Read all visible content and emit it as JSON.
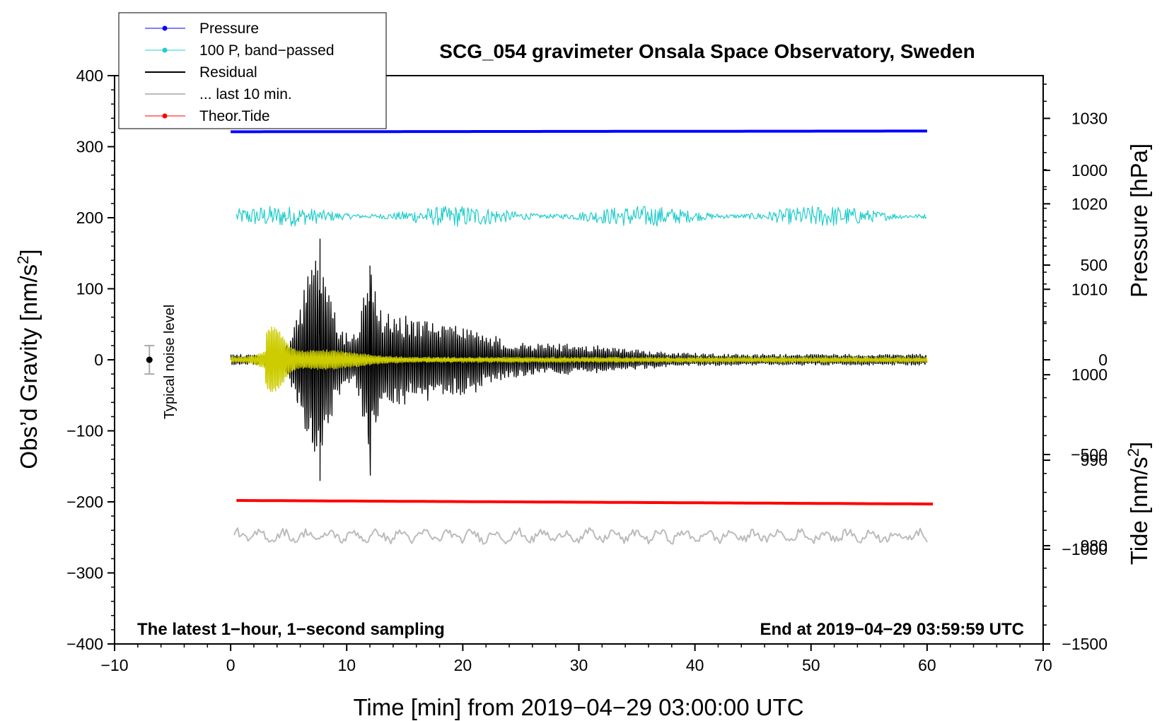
{
  "chart_data": {
    "type": "line",
    "title": "SCG_054 gravimeter Onsala Space Observatory, Sweden",
    "xlabel": "Time [min] from 2019−04−29 03:00:00 UTC",
    "ylabel_left_main": "Obs’d Gravity [nm/s",
    "ylabel_left_sup": "2",
    "ylabel_left_end": "]",
    "ylabel_right_pressure": "Pressure [hPa]",
    "ylabel_right_tide_main": "Tide [nm/s",
    "ylabel_right_tide_sup": "2",
    "ylabel_right_tide_end": "]",
    "xlim": [
      -10,
      70
    ],
    "ylim_left": [
      -400,
      400
    ],
    "ylim_right_pressure": [
      968.5,
      1035
    ],
    "ylim_right_tide": [
      -1500,
      1500
    ],
    "grid": false,
    "legend_position": "top-left",
    "x_ticks": [
      "−10",
      "0",
      "10",
      "20",
      "30",
      "40",
      "50",
      "60",
      "70"
    ],
    "y_ticks_left": [
      "400",
      "300",
      "200",
      "100",
      "0",
      "−100",
      "−200",
      "−300",
      "−400"
    ],
    "y_ticks_right_pressure": [
      "1030",
      "1020",
      "1010",
      "1000",
      "990",
      "980"
    ],
    "y_ticks_right_tide": [
      "1000",
      "500",
      "0",
      "−500",
      "−1000",
      "−1500"
    ],
    "note_left": "The latest 1−hour, 1−second sampling",
    "note_right": "End at 2019−04−29 03:59:59 UTC",
    "noise_label": "Typical noise level",
    "noise_indicator": {
      "x": -7,
      "y": 0,
      "half_range": 20
    },
    "series": [
      {
        "name": "Pressure",
        "color": "#0000ff",
        "style": "line-with-dots",
        "x_range": [
          0,
          60
        ],
        "y_start": 321,
        "y_end": 322,
        "description_axis": "left-plot offset"
      },
      {
        "name": "100 P, band−passed",
        "color": "#22cccc",
        "style": "line-with-dots",
        "x_range": [
          0,
          60
        ],
        "y_center": 202,
        "amplitude": 15
      },
      {
        "name": "Residual",
        "color": "#000000",
        "style": "line",
        "x_range": [
          0,
          60
        ],
        "y_center": 0,
        "peaks": [
          {
            "x": 7.7,
            "y": 170
          },
          {
            "x": 7.7,
            "y": -170
          },
          {
            "x": 12.0,
            "y": 132
          },
          {
            "x": 12.0,
            "y": -122
          }
        ]
      },
      {
        "name": "... last 10 min.",
        "color": "#bbbbbb",
        "style": "line",
        "x_range": [
          0,
          60
        ],
        "y_center": -248,
        "amplitude": 10
      },
      {
        "name": "Theor.Tide",
        "color": "#ff0000",
        "style": "line-with-dots",
        "x_range": [
          0.5,
          60.5
        ],
        "y_start": -198,
        "y_end": -203
      },
      {
        "color": "#cccc00",
        "style": "line",
        "x_range": [
          0,
          60
        ],
        "y_center": 0,
        "peak_amplitude": 40,
        "peak_x": 3.6
      }
    ]
  }
}
